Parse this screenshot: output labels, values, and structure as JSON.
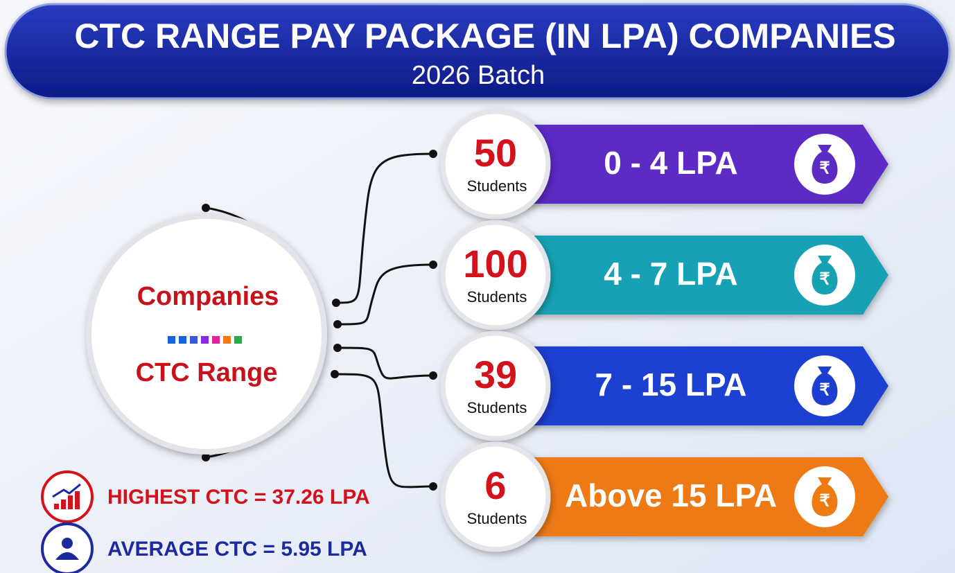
{
  "header": {
    "title": "CTC RANGE PAY PACKAGE (IN LPA) COMPANIES",
    "subtitle": "2026 Batch"
  },
  "center": {
    "line1": "Companies",
    "line2": "CTC Range"
  },
  "currency": "₹",
  "ranges": [
    {
      "count": 50,
      "unit": "Students",
      "label": "0 - 4 LPA",
      "color": "#5b2cc4"
    },
    {
      "count": 100,
      "unit": "Students",
      "label": "4 - 7 LPA",
      "color": "#17a2b4"
    },
    {
      "count": 39,
      "unit": "Students",
      "label": "7 - 15 LPA",
      "color": "#1d3fd0"
    },
    {
      "count": 6,
      "unit": "Students",
      "label": "Above 15 LPA",
      "color": "#ee7a12"
    }
  ],
  "stats": [
    {
      "text": "HIGHEST CTC = 37.26 LPA",
      "color": "#d4121b"
    },
    {
      "text": "AVERAGE CTC = 5.95 LPA",
      "color": "#1c2a9e"
    }
  ]
}
